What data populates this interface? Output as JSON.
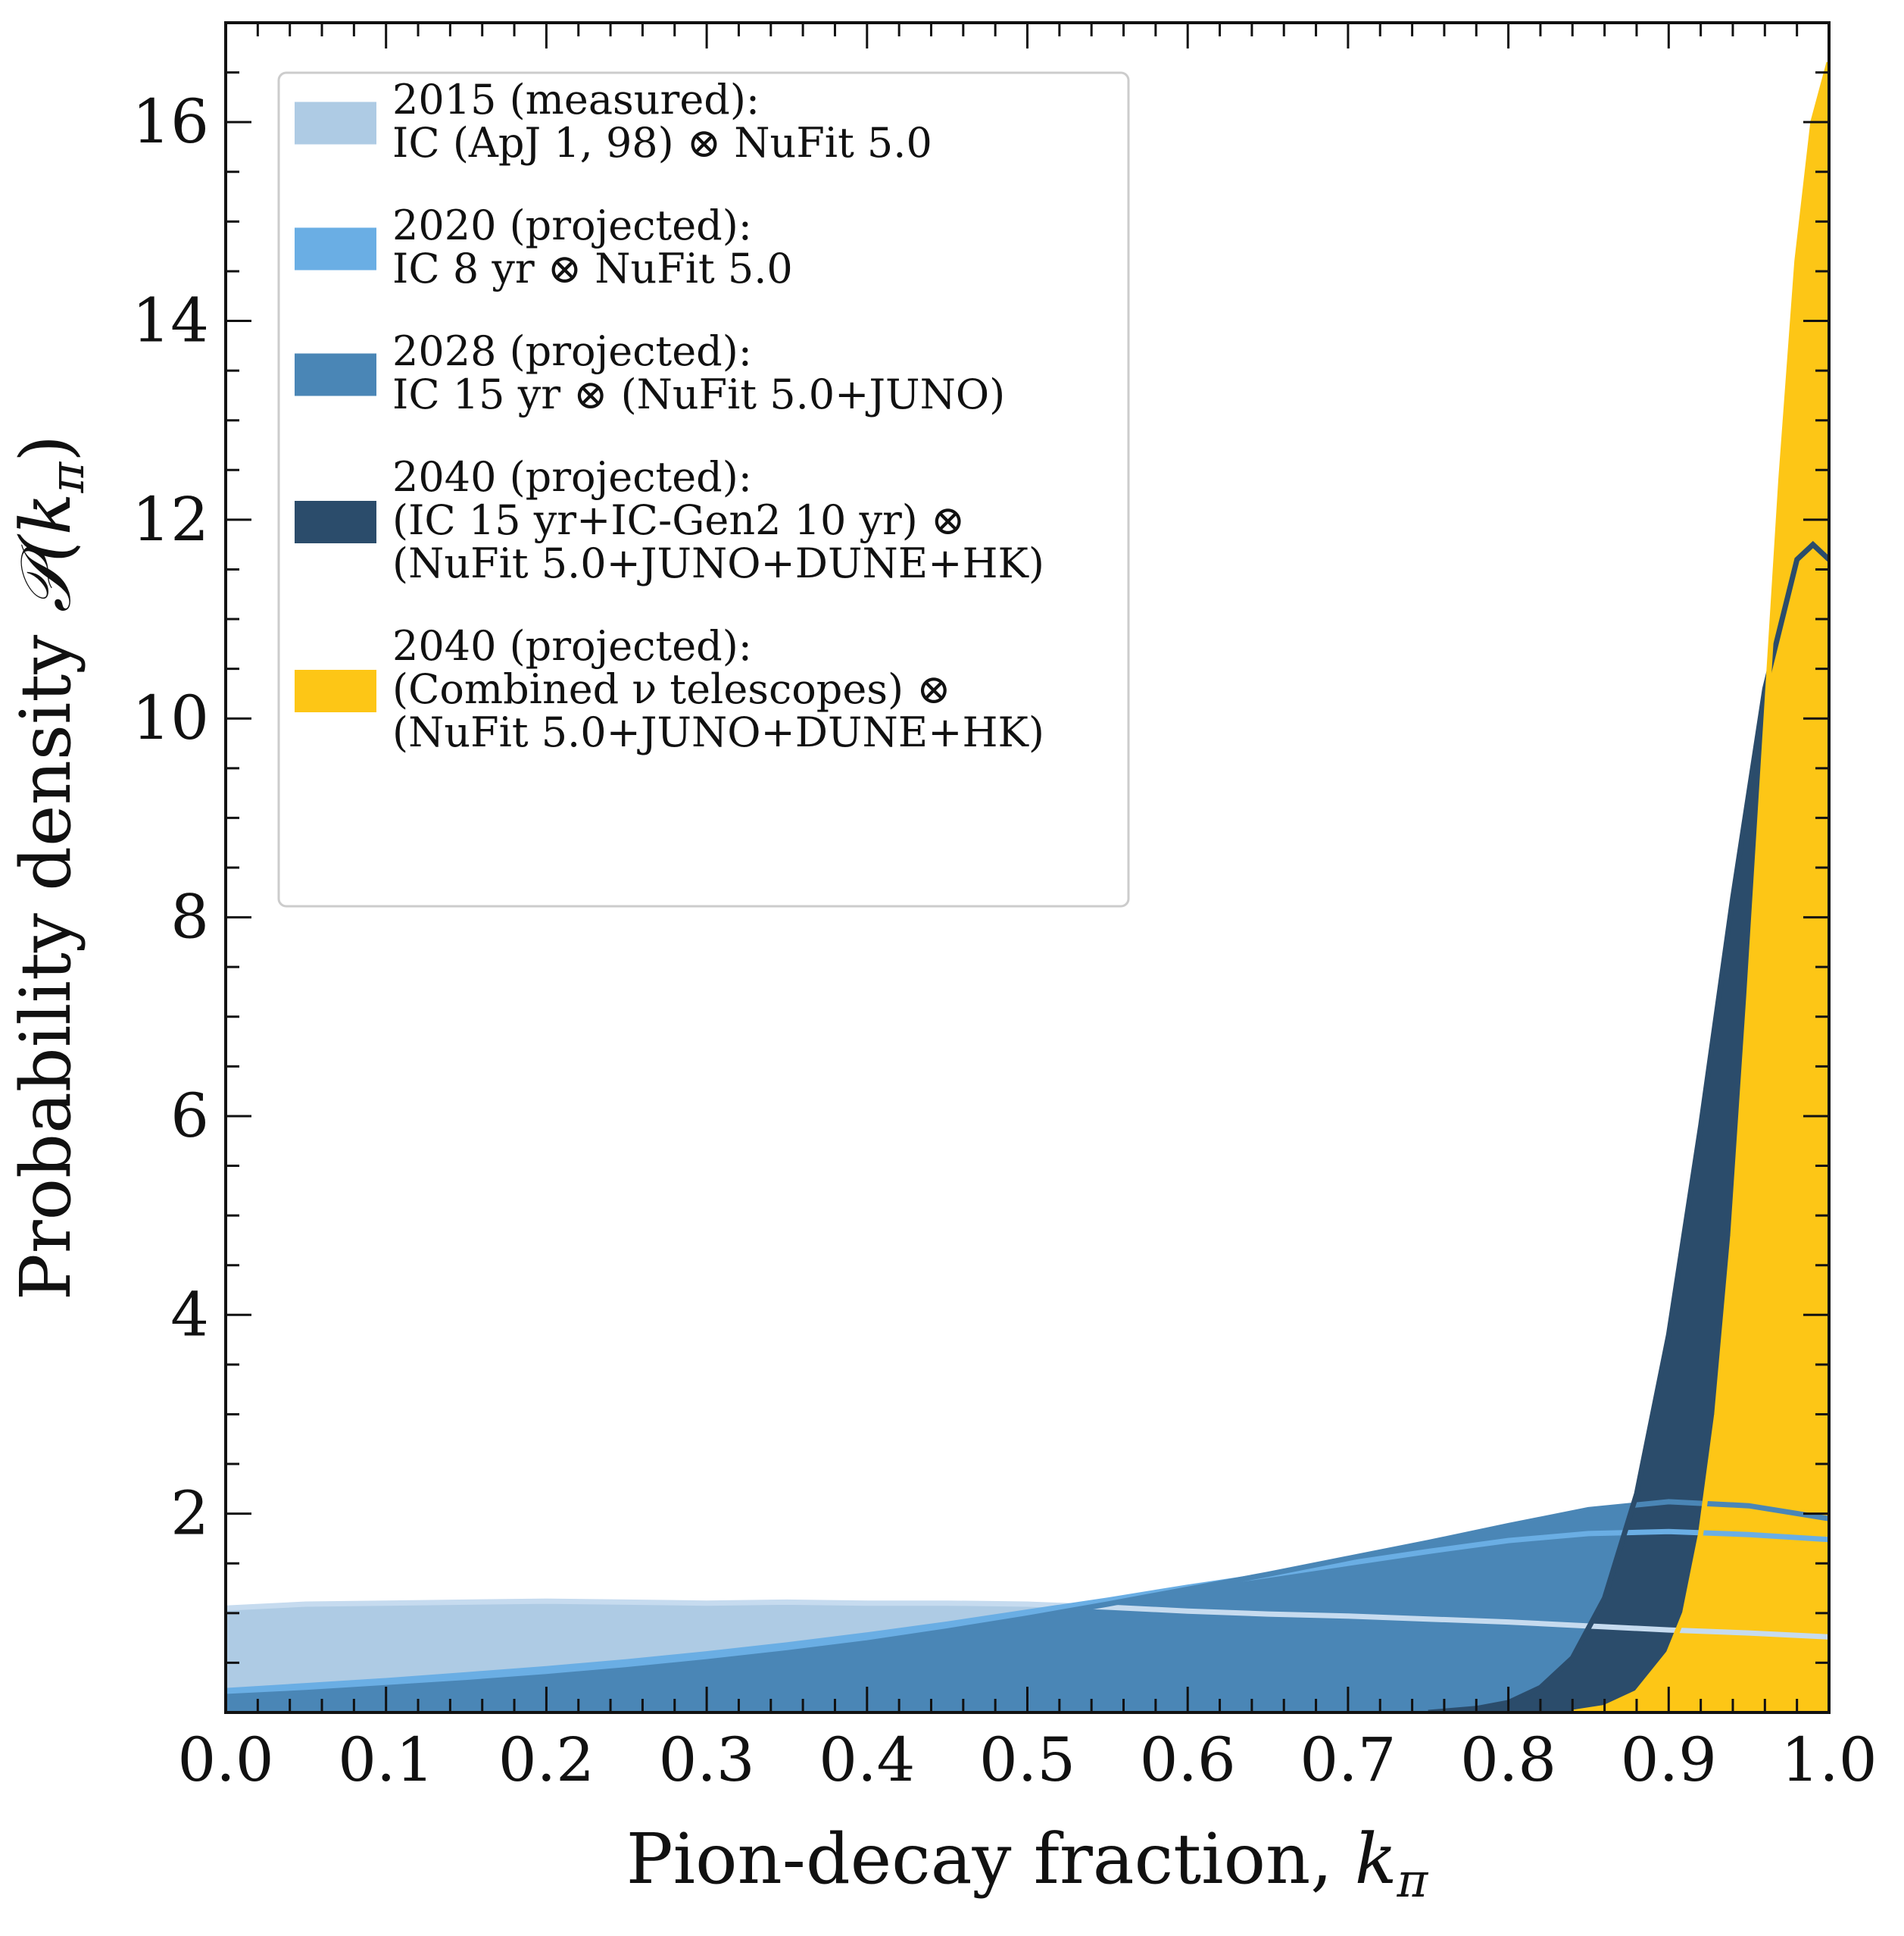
{
  "chart_data": {
    "type": "area",
    "xlabel": "Pion-decay fraction, ",
    "xlabel_symbol": "k",
    "xlabel_sub": "π",
    "ylabel": "Probability density ",
    "ylabel_symbol": "𝒫(k",
    "ylabel_sub": "π",
    "ylabel_close": ")",
    "xlim": [
      0.0,
      1.0
    ],
    "ylim": [
      0.0,
      17.0
    ],
    "xticks": [
      "0.0",
      "0.1",
      "0.2",
      "0.3",
      "0.4",
      "0.5",
      "0.6",
      "0.7",
      "0.8",
      "0.9",
      "1.0"
    ],
    "yticks": [
      "2",
      "4",
      "6",
      "8",
      "10",
      "12",
      "14",
      "16"
    ],
    "legend_position": "top-left",
    "series": [
      {
        "legend": [
          "2015 (measured):",
          "IC (ApJ 1, 98) ⊗ NuFit 5.0"
        ],
        "color": "#aecbe4",
        "line_color": "#c6dbef",
        "x": [
          0.0,
          0.05,
          0.1,
          0.15,
          0.2,
          0.25,
          0.3,
          0.35,
          0.4,
          0.45,
          0.5,
          0.55,
          0.6,
          0.65,
          0.7,
          0.75,
          0.8,
          0.85,
          0.9,
          0.95,
          1.0
        ],
        "y": [
          1.05,
          1.09,
          1.1,
          1.11,
          1.12,
          1.11,
          1.1,
          1.11,
          1.1,
          1.1,
          1.09,
          1.06,
          1.02,
          0.99,
          0.97,
          0.94,
          0.91,
          0.87,
          0.83,
          0.8,
          0.76
        ]
      },
      {
        "legend": [
          "2020 (projected):",
          "IC 8 yr ⊗ NuFit 5.0"
        ],
        "color": "#6aaee4",
        "line_color": "#6aaee4",
        "x": [
          0.0,
          0.05,
          0.1,
          0.15,
          0.2,
          0.25,
          0.3,
          0.35,
          0.4,
          0.45,
          0.5,
          0.55,
          0.6,
          0.65,
          0.7,
          0.75,
          0.8,
          0.85,
          0.9,
          0.95,
          1.0
        ],
        "y": [
          0.22,
          0.27,
          0.32,
          0.38,
          0.44,
          0.51,
          0.59,
          0.68,
          0.78,
          0.89,
          1.01,
          1.13,
          1.26,
          1.38,
          1.5,
          1.62,
          1.73,
          1.8,
          1.82,
          1.79,
          1.74
        ]
      },
      {
        "legend": [
          "2028 (projected):",
          "IC 15 yr ⊗ (NuFit 5.0+JUNO)"
        ],
        "color": "#4a86b6",
        "line_color": "#4a86b6",
        "x": [
          0.0,
          0.05,
          0.1,
          0.15,
          0.2,
          0.25,
          0.3,
          0.35,
          0.4,
          0.45,
          0.5,
          0.55,
          0.6,
          0.65,
          0.7,
          0.75,
          0.8,
          0.85,
          0.9,
          0.95,
          1.0
        ],
        "y": [
          0.16,
          0.2,
          0.25,
          0.3,
          0.36,
          0.43,
          0.51,
          0.6,
          0.7,
          0.82,
          0.95,
          1.09,
          1.24,
          1.39,
          1.55,
          1.71,
          1.88,
          2.04,
          2.12,
          2.08,
          1.95
        ]
      },
      {
        "legend": [
          "2040 (projected):",
          "(IC 15 yr+IC-Gen2 10 yr) ⊗",
          "(NuFit 5.0+JUNO+DUNE+HK)"
        ],
        "color": "#2b4c6b",
        "line_color": "#2b4c6b",
        "x": [
          0.75,
          0.78,
          0.8,
          0.82,
          0.84,
          0.86,
          0.88,
          0.9,
          0.92,
          0.94,
          0.96,
          0.98,
          0.99,
          1.0
        ],
        "y": [
          0.0,
          0.04,
          0.1,
          0.25,
          0.55,
          1.15,
          2.2,
          3.8,
          5.9,
          8.2,
          10.3,
          11.6,
          11.75,
          11.6
        ]
      },
      {
        "legend": [
          "2040 (projected):",
          "(Combined ν telescopes) ⊗",
          "(NuFit 5.0+JUNO+DUNE+HK)"
        ],
        "color": "#fdc616",
        "line_color": "#fdc616",
        "x": [
          0.84,
          0.86,
          0.88,
          0.9,
          0.91,
          0.92,
          0.93,
          0.94,
          0.95,
          0.96,
          0.97,
          0.98,
          0.99,
          1.0
        ],
        "y": [
          0.0,
          0.05,
          0.2,
          0.6,
          1.0,
          1.8,
          3.0,
          4.8,
          7.2,
          9.8,
          12.4,
          14.6,
          16.0,
          16.6
        ]
      }
    ]
  }
}
